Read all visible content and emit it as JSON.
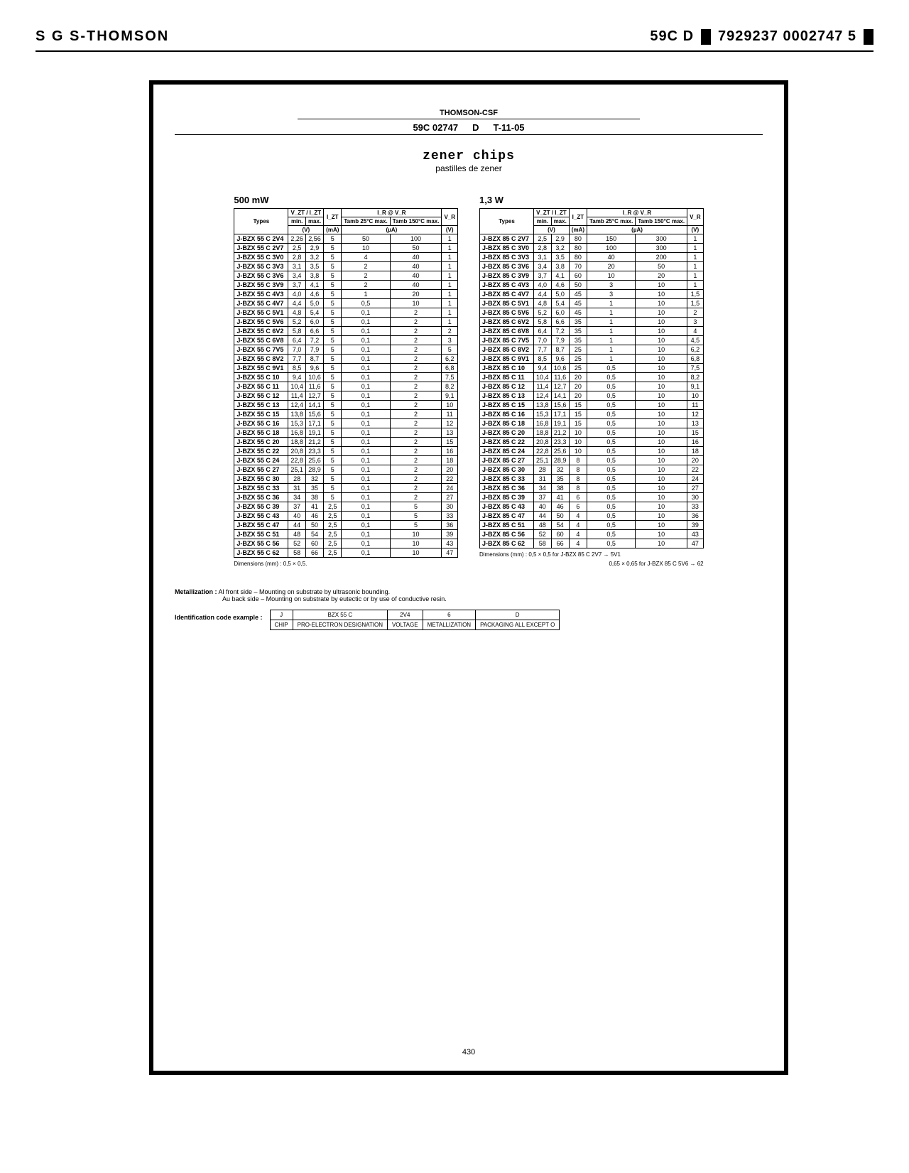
{
  "header": {
    "left": "S G S-THOMSON",
    "right_code": "59C D",
    "right_num": "7929237 0002747 5"
  },
  "frame": {
    "brand": "THOMSON-CSF",
    "doc_code": "59C 02747",
    "doc_rev": "D",
    "doc_date": "T-11-05",
    "title": "zener chips",
    "subtitle": "pastilles de zener"
  },
  "table500": {
    "caption": "500 mW",
    "headers": {
      "types": "Types",
      "vzt": "V_ZT / I_ZT",
      "min": "min.",
      "max": "max.",
      "v_unit": "(V)",
      "izt": "I_ZT",
      "ma_unit": "(mA)",
      "ir": "I_R @ V_R",
      "tamb25": "Tamb 25°C max.",
      "tamb150": "Tamb 150°C max.",
      "ua_unit": "(µA)",
      "vr": "V_R",
      "vr_unit": "(V)"
    },
    "rows": [
      [
        "J-BZX 55 C 2V4",
        "2,26",
        "2,56",
        "5",
        "50",
        "100",
        "1"
      ],
      [
        "J-BZX 55 C 2V7",
        "2,5",
        "2,9",
        "5",
        "10",
        "50",
        "1"
      ],
      [
        "J-BZX 55 C 3V0",
        "2,8",
        "3,2",
        "5",
        "4",
        "40",
        "1"
      ],
      [
        "J-BZX 55 C 3V3",
        "3,1",
        "3,5",
        "5",
        "2",
        "40",
        "1"
      ],
      [
        "J-BZX 55 C 3V6",
        "3,4",
        "3,8",
        "5",
        "2",
        "40",
        "1"
      ],
      [
        "J-BZX 55 C 3V9",
        "3,7",
        "4,1",
        "5",
        "2",
        "40",
        "1"
      ],
      [
        "J-BZX 55 C 4V3",
        "4,0",
        "4,6",
        "5",
        "1",
        "20",
        "1"
      ],
      [
        "J-BZX 55 C 4V7",
        "4,4",
        "5,0",
        "5",
        "0,5",
        "10",
        "1"
      ],
      [
        "J-BZX 55 C 5V1",
        "4,8",
        "5,4",
        "5",
        "0,1",
        "2",
        "1"
      ],
      [
        "J-BZX 55 C 5V6",
        "5,2",
        "6,0",
        "5",
        "0,1",
        "2",
        "1"
      ],
      [
        "J-BZX 55 C 6V2",
        "5,8",
        "6,6",
        "5",
        "0,1",
        "2",
        "2"
      ],
      [
        "J-BZX 55 C 6V8",
        "6,4",
        "7,2",
        "5",
        "0,1",
        "2",
        "3"
      ],
      [
        "J-BZX 55 C 7V5",
        "7,0",
        "7,9",
        "5",
        "0,1",
        "2",
        "5"
      ],
      [
        "J-BZX 55 C 8V2",
        "7,7",
        "8,7",
        "5",
        "0,1",
        "2",
        "6,2"
      ],
      [
        "J-BZX 55 C 9V1",
        "8,5",
        "9,6",
        "5",
        "0,1",
        "2",
        "6,8"
      ],
      [
        "J-BZX 55 C 10",
        "9,4",
        "10,6",
        "5",
        "0,1",
        "2",
        "7,5"
      ],
      [
        "J-BZX 55 C 11",
        "10,4",
        "11,6",
        "5",
        "0,1",
        "2",
        "8,2"
      ],
      [
        "J-BZX 55 C 12",
        "11,4",
        "12,7",
        "5",
        "0,1",
        "2",
        "9,1"
      ],
      [
        "J-BZX 55 C 13",
        "12,4",
        "14,1",
        "5",
        "0,1",
        "2",
        "10"
      ],
      [
        "J-BZX 55 C 15",
        "13,8",
        "15,6",
        "5",
        "0,1",
        "2",
        "11"
      ],
      [
        "J-BZX 55 C 16",
        "15,3",
        "17,1",
        "5",
        "0,1",
        "2",
        "12"
      ],
      [
        "J-BZX 55 C 18",
        "16,8",
        "19,1",
        "5",
        "0,1",
        "2",
        "13"
      ],
      [
        "J-BZX 55 C 20",
        "18,8",
        "21,2",
        "5",
        "0,1",
        "2",
        "15"
      ],
      [
        "J-BZX 55 C 22",
        "20,8",
        "23,3",
        "5",
        "0,1",
        "2",
        "16"
      ],
      [
        "J-BZX 55 C 24",
        "22,8",
        "25,6",
        "5",
        "0,1",
        "2",
        "18"
      ],
      [
        "J-BZX 55 C 27",
        "25,1",
        "28,9",
        "5",
        "0,1",
        "2",
        "20"
      ],
      [
        "J-BZX 55 C 30",
        "28",
        "32",
        "5",
        "0,1",
        "2",
        "22"
      ],
      [
        "J-BZX 55 C 33",
        "31",
        "35",
        "5",
        "0,1",
        "2",
        "24"
      ],
      [
        "J-BZX 55 C 36",
        "34",
        "38",
        "5",
        "0,1",
        "2",
        "27"
      ],
      [
        "J-BZX 55 C 39",
        "37",
        "41",
        "2,5",
        "0,1",
        "5",
        "30"
      ],
      [
        "J-BZX 55 C 43",
        "40",
        "46",
        "2,5",
        "0,1",
        "5",
        "33"
      ],
      [
        "J-BZX 55 C 47",
        "44",
        "50",
        "2,5",
        "0,1",
        "5",
        "36"
      ],
      [
        "J-BZX 55 C 51",
        "48",
        "54",
        "2,5",
        "0,1",
        "10",
        "39"
      ],
      [
        "J-BZX 55 C 56",
        "52",
        "60",
        "2,5",
        "0,1",
        "10",
        "43"
      ],
      [
        "J-BZX 55 C 62",
        "58",
        "66",
        "2,5",
        "0,1",
        "10",
        "47"
      ]
    ],
    "dims": "Dimensions (mm) : 0,5 × 0,5."
  },
  "table13": {
    "caption": "1,3 W",
    "rows": [
      [
        "J-BZX 85 C 2V7",
        "2,5",
        "2,9",
        "80",
        "150",
        "300",
        "1"
      ],
      [
        "J-BZX 85 C 3V0",
        "2,8",
        "3,2",
        "80",
        "100",
        "300",
        "1"
      ],
      [
        "J-BZX 85 C 3V3",
        "3,1",
        "3,5",
        "80",
        "40",
        "200",
        "1"
      ],
      [
        "J-BZX 85 C 3V6",
        "3,4",
        "3,8",
        "70",
        "20",
        "50",
        "1"
      ],
      [
        "J-BZX 85 C 3V9",
        "3,7",
        "4,1",
        "60",
        "10",
        "20",
        "1"
      ],
      [
        "J-BZX 85 C 4V3",
        "4,0",
        "4,6",
        "50",
        "3",
        "10",
        "1"
      ],
      [
        "J-BZX 85 C 4V7",
        "4,4",
        "5,0",
        "45",
        "3",
        "10",
        "1,5"
      ],
      [
        "J-BZX 85 C 5V1",
        "4,8",
        "5,4",
        "45",
        "1",
        "10",
        "1,5"
      ],
      [
        "J-BZX 85 C 5V6",
        "5,2",
        "6,0",
        "45",
        "1",
        "10",
        "2"
      ],
      [
        "J-BZX 85 C 6V2",
        "5,8",
        "6,6",
        "35",
        "1",
        "10",
        "3"
      ],
      [
        "J-BZX 85 C 6V8",
        "6,4",
        "7,2",
        "35",
        "1",
        "10",
        "4"
      ],
      [
        "J-BZX 85 C 7V5",
        "7,0",
        "7,9",
        "35",
        "1",
        "10",
        "4,5"
      ],
      [
        "J-BZX 85 C 8V2",
        "7,7",
        "8,7",
        "25",
        "1",
        "10",
        "6,2"
      ],
      [
        "J-BZX 85 C 9V1",
        "8,5",
        "9,6",
        "25",
        "1",
        "10",
        "6,8"
      ],
      [
        "J-BZX 85 C 10",
        "9,4",
        "10,6",
        "25",
        "0,5",
        "10",
        "7,5"
      ],
      [
        "J-BZX 85 C 11",
        "10,4",
        "11,6",
        "20",
        "0,5",
        "10",
        "8,2"
      ],
      [
        "J-BZX 85 C 12",
        "11,4",
        "12,7",
        "20",
        "0,5",
        "10",
        "9,1"
      ],
      [
        "J-BZX 85 C 13",
        "12,4",
        "14,1",
        "20",
        "0,5",
        "10",
        "10"
      ],
      [
        "J-BZX 85 C 15",
        "13,8",
        "15,6",
        "15",
        "0,5",
        "10",
        "11"
      ],
      [
        "J-BZX 85 C 16",
        "15,3",
        "17,1",
        "15",
        "0,5",
        "10",
        "12"
      ],
      [
        "J-BZX 85 C 18",
        "16,8",
        "19,1",
        "15",
        "0,5",
        "10",
        "13"
      ],
      [
        "J-BZX 85 C 20",
        "18,8",
        "21,2",
        "10",
        "0,5",
        "10",
        "15"
      ],
      [
        "J-BZX 85 C 22",
        "20,8",
        "23,3",
        "10",
        "0,5",
        "10",
        "16"
      ],
      [
        "J-BZX 85 C 24",
        "22,8",
        "25,6",
        "10",
        "0,5",
        "10",
        "18"
      ],
      [
        "J-BZX 85 C 27",
        "25,1",
        "28,9",
        "8",
        "0,5",
        "10",
        "20"
      ],
      [
        "J-BZX 85 C 30",
        "28",
        "32",
        "8",
        "0,5",
        "10",
        "22"
      ],
      [
        "J-BZX 85 C 33",
        "31",
        "35",
        "8",
        "0,5",
        "10",
        "24"
      ],
      [
        "J-BZX 85 C 36",
        "34",
        "38",
        "8",
        "0,5",
        "10",
        "27"
      ],
      [
        "J-BZX 85 C 39",
        "37",
        "41",
        "6",
        "0,5",
        "10",
        "30"
      ],
      [
        "J-BZX 85 C 43",
        "40",
        "46",
        "6",
        "0,5",
        "10",
        "33"
      ],
      [
        "J-BZX 85 C 47",
        "44",
        "50",
        "4",
        "0,5",
        "10",
        "36"
      ],
      [
        "J-BZX 85 C 51",
        "48",
        "54",
        "4",
        "0,5",
        "10",
        "39"
      ],
      [
        "J-BZX 85 C 56",
        "52",
        "60",
        "4",
        "0,5",
        "10",
        "43"
      ],
      [
        "J-BZX 85 C 62",
        "58",
        "66",
        "4",
        "0,5",
        "10",
        "47"
      ]
    ],
    "dims1": "Dimensions (mm) : 0,5 × 0,5 for J-BZX 85 C 2V7 → 5V1",
    "dims2": "0,65 × 0,65 for J-BZX 85 C 5V6 → 62"
  },
  "metallization": {
    "label": "Metallization :",
    "line1": "Al front side – Mounting on substrate by ultrasonic bounding.",
    "line2": "Au back side – Mounting on substrate by eutectic or by use of conductive resin."
  },
  "idcode": {
    "label": "Identification code example :",
    "row1": [
      "J",
      "BZX 55 C",
      "2V4",
      "6",
      "D"
    ],
    "row2": [
      "CHIP",
      "PRO-ELECTRON DESIGNATION",
      "VOLTAGE",
      "METALLIZATION",
      "PACKAGING ALL EXCEPT O"
    ]
  },
  "page_number": "430",
  "style": {
    "border_color": "#000000",
    "page_bg": "#ffffff",
    "font_body": "Arial",
    "font_mono": "Courier New"
  }
}
